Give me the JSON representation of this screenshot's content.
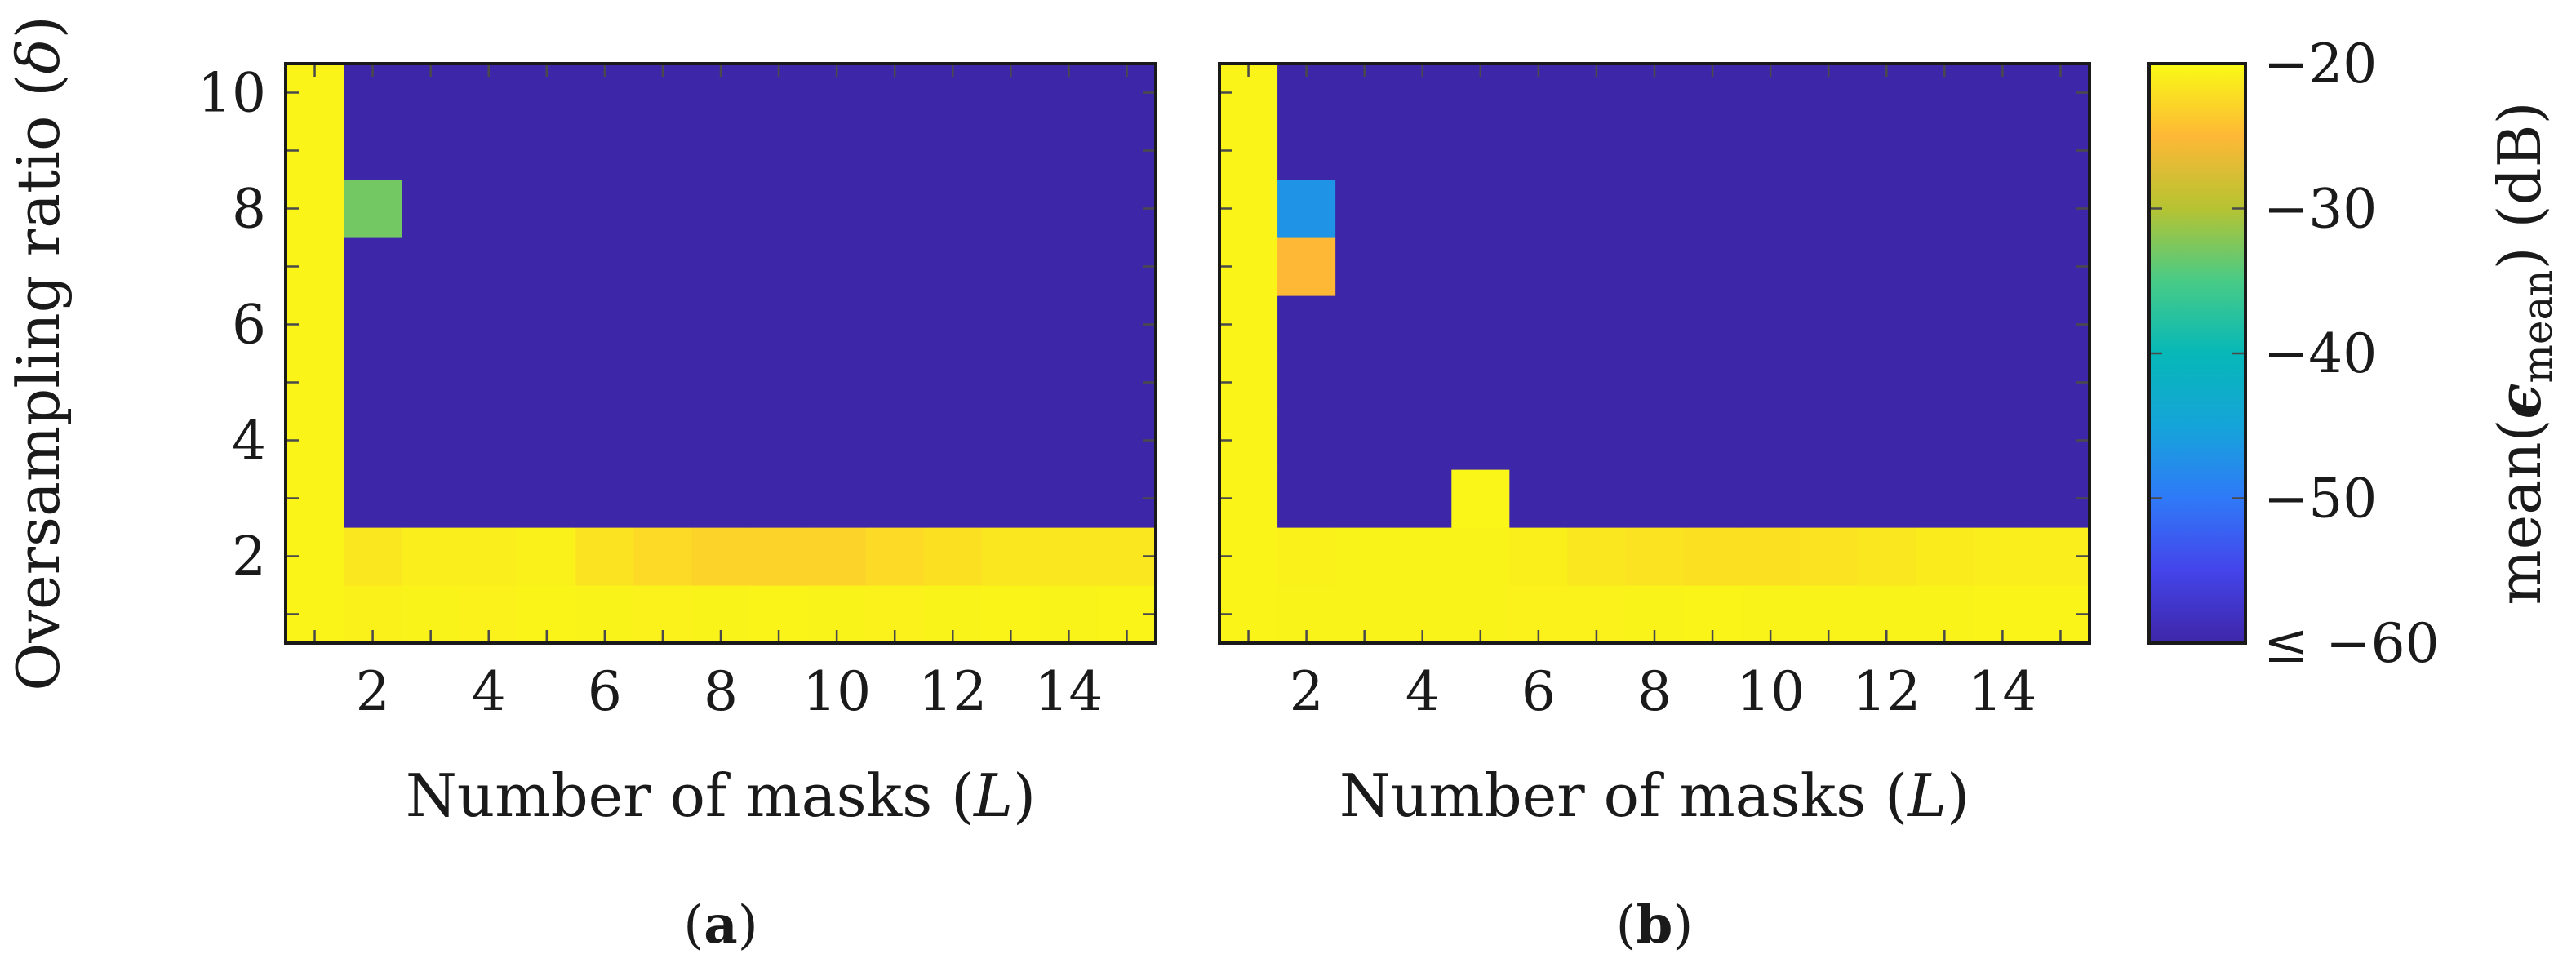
{
  "chart_data": [
    {
      "type": "heatmap",
      "panel_label_bold": "a",
      "x": [
        1,
        2,
        3,
        4,
        5,
        6,
        7,
        8,
        9,
        10,
        11,
        12,
        13,
        14,
        15
      ],
      "y": [
        1,
        2,
        3,
        4,
        5,
        6,
        7,
        8,
        9,
        10
      ],
      "xticks": [
        "2",
        "4",
        "6",
        "8",
        "10",
        "12",
        "14"
      ],
      "yticks": [
        "2",
        "4",
        "6",
        "8",
        "10"
      ],
      "xlabel_text": "Number of masks (",
      "xlabel_symbol": "L",
      "xlabel_close": ")",
      "ylabel_text": "Oversampling ratio (",
      "ylabel_symbol": "δ",
      "ylabel_close": ")",
      "z": [
        [
          -20.5,
          -20.8,
          -20.6,
          -20.7,
          -20.5,
          -20.6,
          -20.7,
          -20.6,
          -20.5,
          -20.6,
          -20.7,
          -20.6,
          -20.5,
          -20.6,
          -20.5
        ],
        [
          -20.5,
          -21.5,
          -21.0,
          -21.0,
          -20.8,
          -21.8,
          -22.5,
          -23.0,
          -23.0,
          -23.0,
          -22.5,
          -22.0,
          -21.5,
          -21.5,
          -21.5
        ],
        [
          -20.5,
          -60,
          -60,
          -60,
          -60,
          -60,
          -60,
          -60,
          -60,
          -60,
          -60,
          -60,
          -60,
          -60,
          -60
        ],
        [
          -20.5,
          -60,
          -60,
          -60,
          -60,
          -60,
          -60,
          -60,
          -60,
          -60,
          -60,
          -60,
          -60,
          -60,
          -60
        ],
        [
          -20.5,
          -60,
          -60,
          -60,
          -60,
          -60,
          -60,
          -60,
          -60,
          -60,
          -60,
          -60,
          -60,
          -60,
          -60
        ],
        [
          -20.5,
          -60,
          -60,
          -60,
          -60,
          -60,
          -60,
          -60,
          -60,
          -60,
          -60,
          -60,
          -60,
          -60,
          -60
        ],
        [
          -20.5,
          -60,
          -60,
          -60,
          -60,
          -60,
          -60,
          -60,
          -60,
          -60,
          -60,
          -60,
          -60,
          -60,
          -60
        ],
        [
          -20.5,
          -33,
          -60,
          -60,
          -60,
          -60,
          -60,
          -60,
          -60,
          -60,
          -60,
          -60,
          -60,
          -60,
          -60
        ],
        [
          -20.5,
          -60,
          -60,
          -60,
          -60,
          -60,
          -60,
          -60,
          -60,
          -60,
          -60,
          -60,
          -60,
          -60,
          -60
        ],
        [
          -20.5,
          -60,
          -60,
          -60,
          -60,
          -60,
          -60,
          -60,
          -60,
          -60,
          -60,
          -60,
          -60,
          -60,
          -60
        ]
      ]
    },
    {
      "type": "heatmap",
      "panel_label_bold": "b",
      "x": [
        1,
        2,
        3,
        4,
        5,
        6,
        7,
        8,
        9,
        10,
        11,
        12,
        13,
        14,
        15
      ],
      "y": [
        1,
        2,
        3,
        4,
        5,
        6,
        7,
        8,
        9,
        10
      ],
      "xticks": [
        "2",
        "4",
        "6",
        "8",
        "10",
        "12",
        "14"
      ],
      "xlabel_text": "Number of masks (",
      "xlabel_symbol": "L",
      "xlabel_close": ")",
      "z": [
        [
          -20.5,
          -20.6,
          -20.6,
          -20.6,
          -20.6,
          -20.7,
          -20.7,
          -20.6,
          -20.5,
          -20.6,
          -20.6,
          -20.6,
          -20.6,
          -20.5,
          -20.5
        ],
        [
          -20.5,
          -20.8,
          -20.6,
          -20.6,
          -20.6,
          -20.9,
          -21.5,
          -21.8,
          -22.0,
          -22.0,
          -21.8,
          -21.5,
          -21.2,
          -21.0,
          -21.0
        ],
        [
          -20.5,
          -60,
          -60,
          -60,
          -20.4,
          -60,
          -60,
          -60,
          -60,
          -60,
          -60,
          -60,
          -60,
          -60,
          -60
        ],
        [
          -20.5,
          -60,
          -60,
          -60,
          -60,
          -60,
          -60,
          -60,
          -60,
          -60,
          -60,
          -60,
          -60,
          -60,
          -60
        ],
        [
          -20.5,
          -60,
          -60,
          -60,
          -60,
          -60,
          -60,
          -60,
          -60,
          -60,
          -60,
          -60,
          -60,
          -60,
          -60
        ],
        [
          -20.5,
          -60,
          -60,
          -60,
          -60,
          -60,
          -60,
          -60,
          -60,
          -60,
          -60,
          -60,
          -60,
          -60,
          -60
        ],
        [
          -20.5,
          -25,
          -60,
          -60,
          -60,
          -60,
          -60,
          -60,
          -60,
          -60,
          -60,
          -60,
          -60,
          -60,
          -60
        ],
        [
          -20.5,
          -47,
          -60,
          -60,
          -60,
          -60,
          -60,
          -60,
          -60,
          -60,
          -60,
          -60,
          -60,
          -60,
          -60
        ],
        [
          -20.5,
          -60,
          -60,
          -60,
          -60,
          -60,
          -60,
          -60,
          -60,
          -60,
          -60,
          -60,
          -60,
          -60,
          -60
        ],
        [
          -20.5,
          -60,
          -60,
          -60,
          -60,
          -60,
          -60,
          -60,
          -60,
          -60,
          -60,
          -60,
          -60,
          -60,
          -60
        ]
      ]
    }
  ],
  "colorbar": {
    "range": [
      -60,
      -20
    ],
    "colormap": "parula",
    "ticks": [
      -20,
      -30,
      -40,
      -50,
      -60
    ],
    "tick_labels": [
      "−20",
      "−30",
      "−40",
      "−50",
      "≤ −60"
    ],
    "label_prefix": "mean(",
    "label_epsilon": "ϵ",
    "label_subscript": "mean",
    "label_suffix": ") (dB)"
  }
}
